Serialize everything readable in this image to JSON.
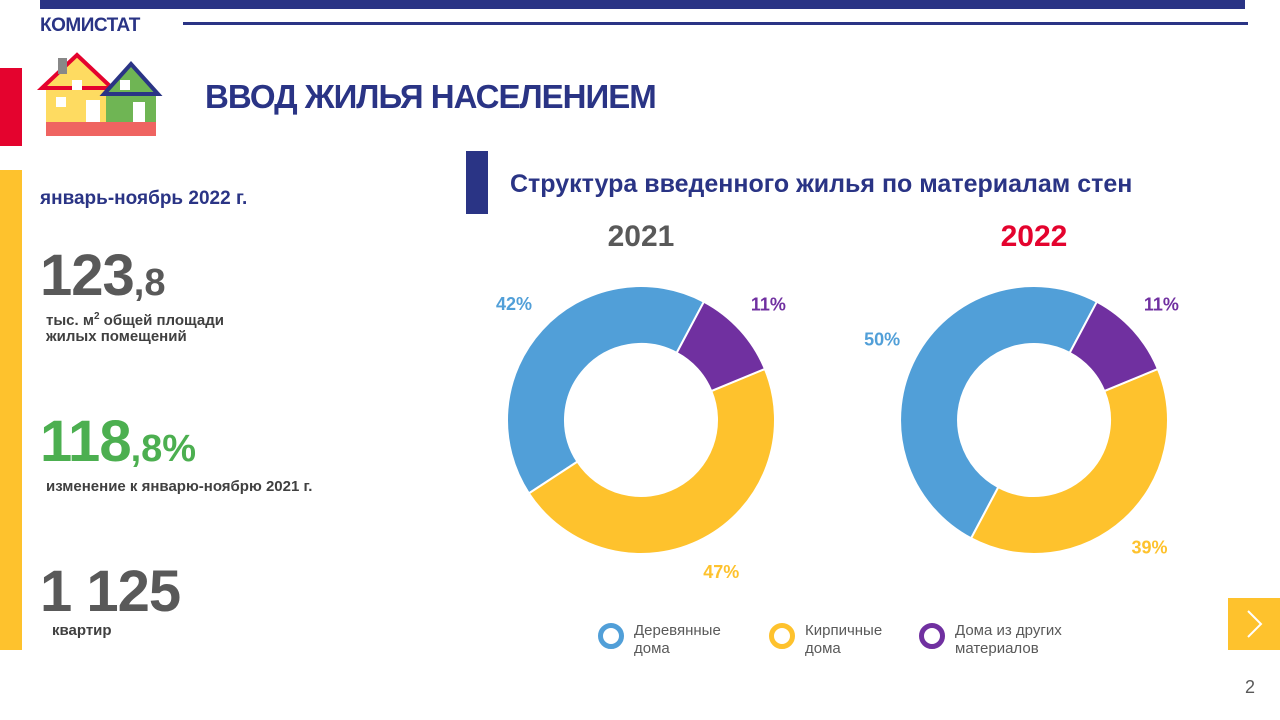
{
  "header": {
    "org": "КОМИСТАТ",
    "title": "ВВОД ЖИЛЬЯ НАСЕЛЕНИЕМ"
  },
  "period": "январь-ноябрь 2022 г.",
  "stats": [
    {
      "main": "123",
      "fraction": ",8",
      "unit": "тыс. м",
      "sup": "2",
      "note": " общей площади\nжилых помещений"
    },
    {
      "main": "118",
      "fraction": ",8%",
      "note": "изменение к январю-ноябрю 2021 г."
    },
    {
      "main": "1 125",
      "note": "квартир"
    }
  ],
  "section_title": "Структура введенного жилья по материалам стен",
  "page_number": "2",
  "chart_data": [
    {
      "type": "donut",
      "title": "2021",
      "title_color": "#595959",
      "categories": [
        "Деревянные дома",
        "Кирпичные дома",
        "Дома из других материалов"
      ],
      "colors": [
        "#519fd8",
        "#fec22d",
        "#7030a0"
      ],
      "values": [
        42,
        47,
        11
      ],
      "value_labels": [
        "42%",
        "47%",
        "11%"
      ]
    },
    {
      "type": "donut",
      "title": "2022",
      "title_color": "#e4032e",
      "values": [
        50,
        39,
        11
      ],
      "value_labels": [
        "50%",
        "39%",
        "11%"
      ]
    }
  ]
}
